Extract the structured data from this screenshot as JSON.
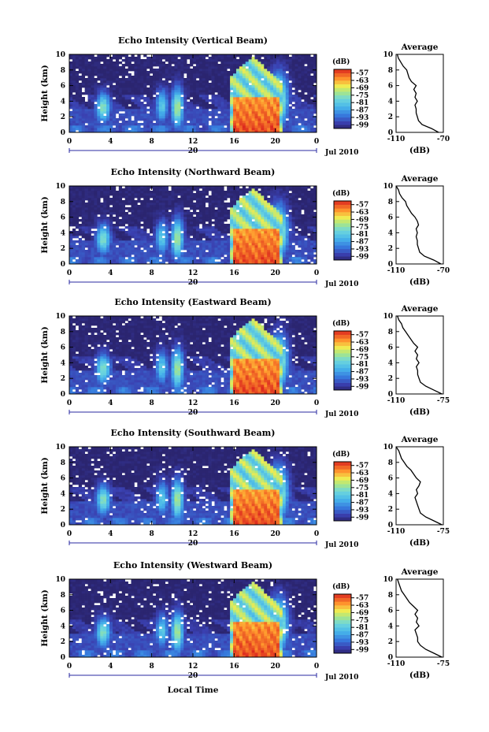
{
  "figure": {
    "xlabel": "Local Time",
    "panel_ylabel": "Height (km)",
    "date_label": "Jul 2010",
    "day_label": "20",
    "colorbar_unit": "(dB)",
    "average_title": "Average",
    "average_xlabel": "(dB)"
  },
  "chart_data": [
    {
      "type": "heatmap",
      "title": "Echo Intensity (Vertical Beam)",
      "x_ticks": [
        "0",
        "4",
        "8",
        "12",
        "16",
        "20",
        "0"
      ],
      "xlim": [
        0,
        24
      ],
      "y_ticks": [
        "0",
        "2",
        "4",
        "6",
        "8",
        "10"
      ],
      "ylim": [
        0,
        10
      ],
      "colorbar_ticks": [
        "-57",
        "-63",
        "-69",
        "-75",
        "-81",
        "-87",
        "-93",
        "-99"
      ],
      "colorbar_range": [
        -102,
        -54
      ],
      "average_profile": {
        "xlim": [
          -110,
          -70
        ],
        "x_ticks": [
          "-110",
          "-70"
        ],
        "y_ticks": [
          "0",
          "2",
          "4",
          "6",
          "8",
          "10"
        ],
        "height": [
          0,
          0.5,
          1,
          1.5,
          2,
          2.5,
          3,
          3.5,
          4,
          4.5,
          5,
          5.5,
          6,
          6.5,
          7,
          7.5,
          8,
          8.5,
          9,
          9.5,
          10
        ],
        "intensity": [
          -74,
          -80,
          -88,
          -91,
          -92,
          -93,
          -93,
          -94,
          -92,
          -94,
          -93,
          -95,
          -93,
          -97,
          -99,
          -100,
          -101,
          -104,
          -106,
          -108,
          -109
        ]
      }
    },
    {
      "type": "heatmap",
      "title": "Echo Intensity (Northward Beam)",
      "x_ticks": [
        "0",
        "4",
        "8",
        "12",
        "16",
        "20",
        "0"
      ],
      "xlim": [
        0,
        24
      ],
      "y_ticks": [
        "0",
        "2",
        "4",
        "6",
        "8",
        "10"
      ],
      "ylim": [
        0,
        10
      ],
      "colorbar_ticks": [
        "-57",
        "-63",
        "-69",
        "-75",
        "-81",
        "-87",
        "-93",
        "-99"
      ],
      "colorbar_range": [
        -102,
        -54
      ],
      "average_profile": {
        "xlim": [
          -110,
          -70
        ],
        "x_ticks": [
          "-110",
          "-70"
        ],
        "y_ticks": [
          "0",
          "2",
          "4",
          "6",
          "8",
          "10"
        ],
        "height": [
          0,
          0.5,
          1,
          1.5,
          2,
          2.5,
          3,
          3.5,
          4,
          4.5,
          5,
          5.5,
          6,
          6.5,
          7,
          7.5,
          8,
          8.5,
          9,
          9.5,
          10
        ],
        "intensity": [
          -72,
          -78,
          -86,
          -90,
          -91,
          -92,
          -92,
          -93,
          -92,
          -93,
          -91,
          -92,
          -94,
          -97,
          -99,
          -101,
          -102,
          -105,
          -107,
          -108,
          -110
        ]
      }
    },
    {
      "type": "heatmap",
      "title": "Echo Intensity (Eastward Beam)",
      "x_ticks": [
        "0",
        "4",
        "8",
        "12",
        "16",
        "20",
        "0"
      ],
      "xlim": [
        0,
        24
      ],
      "y_ticks": [
        "0",
        "2",
        "4",
        "6",
        "8",
        "10"
      ],
      "ylim": [
        0,
        10
      ],
      "colorbar_ticks": [
        "-57",
        "-63",
        "-69",
        "-75",
        "-81",
        "-87",
        "-93",
        "-99"
      ],
      "colorbar_range": [
        -102,
        -54
      ],
      "average_profile": {
        "xlim": [
          -110,
          -75
        ],
        "x_ticks": [
          "-110",
          "-75"
        ],
        "y_ticks": [
          "0",
          "2",
          "4",
          "6",
          "8",
          "10"
        ],
        "height": [
          0,
          0.5,
          1,
          1.5,
          2,
          2.5,
          3,
          3.5,
          4,
          4.5,
          5,
          5.5,
          6,
          6.5,
          7,
          7.5,
          8,
          8.5,
          9,
          9.5,
          10
        ],
        "intensity": [
          -76,
          -82,
          -88,
          -92,
          -93,
          -94,
          -94,
          -95,
          -93,
          -95,
          -94,
          -96,
          -94,
          -97,
          -99,
          -101,
          -103,
          -105,
          -106,
          -108,
          -109
        ]
      }
    },
    {
      "type": "heatmap",
      "title": "Echo Intensity (Southward Beam)",
      "x_ticks": [
        "0",
        "4",
        "8",
        "12",
        "16",
        "20",
        "0"
      ],
      "xlim": [
        0,
        24
      ],
      "y_ticks": [
        "0",
        "2",
        "4",
        "6",
        "8",
        "10"
      ],
      "ylim": [
        0,
        10
      ],
      "colorbar_ticks": [
        "-57",
        "-63",
        "-69",
        "-75",
        "-81",
        "-87",
        "-93",
        "-99"
      ],
      "colorbar_range": [
        -102,
        -54
      ],
      "average_profile": {
        "xlim": [
          -110,
          -75
        ],
        "x_ticks": [
          "-110",
          "-75"
        ],
        "y_ticks": [
          "0",
          "2",
          "4",
          "6",
          "8",
          "10"
        ],
        "height": [
          0,
          0.5,
          1,
          1.5,
          2,
          2.5,
          3,
          3.5,
          4,
          4.5,
          5,
          5.5,
          6,
          6.5,
          7,
          7.5,
          8,
          8.5,
          9,
          9.5,
          10
        ],
        "intensity": [
          -76,
          -82,
          -88,
          -92,
          -93,
          -94,
          -95,
          -96,
          -94,
          -95,
          -93,
          -92,
          -95,
          -97,
          -99,
          -102,
          -104,
          -106,
          -107,
          -108,
          -110
        ]
      }
    },
    {
      "type": "heatmap",
      "title": "Echo Intensity (Westward Beam)",
      "x_ticks": [
        "0",
        "4",
        "8",
        "12",
        "16",
        "20",
        "0"
      ],
      "xlim": [
        0,
        24
      ],
      "y_ticks": [
        "0",
        "2",
        "4",
        "6",
        "8",
        "10"
      ],
      "ylim": [
        0,
        10
      ],
      "colorbar_ticks": [
        "-57",
        "-63",
        "-69",
        "-75",
        "-81",
        "-87",
        "-93",
        "-99"
      ],
      "colorbar_range": [
        -102,
        -54
      ],
      "average_profile": {
        "xlim": [
          -110,
          -75
        ],
        "x_ticks": [
          "-110",
          "-75"
        ],
        "y_ticks": [
          "0",
          "2",
          "4",
          "6",
          "8",
          "10"
        ],
        "height": [
          0,
          0.5,
          1,
          1.5,
          2,
          2.5,
          3,
          3.5,
          4,
          4.5,
          5,
          5.5,
          6,
          6.5,
          7,
          7.5,
          8,
          8.5,
          9,
          9.5,
          10
        ],
        "intensity": [
          -76,
          -82,
          -88,
          -92,
          -94,
          -94,
          -95,
          -96,
          -93,
          -95,
          -94,
          -96,
          -94,
          -97,
          -100,
          -102,
          -104,
          -106,
          -107,
          -108,
          -109
        ]
      }
    }
  ]
}
